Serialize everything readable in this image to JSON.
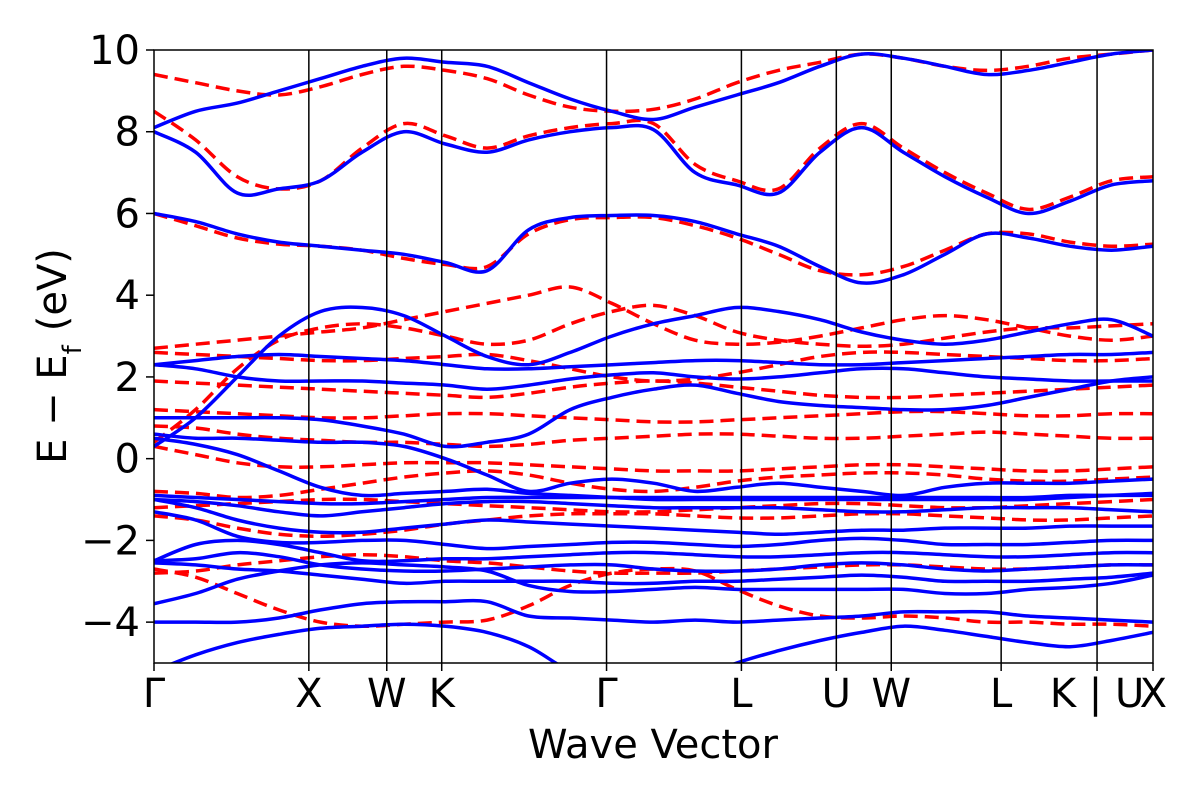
{
  "chart_data": {
    "type": "line",
    "title": "",
    "xlabel": "Wave Vector",
    "ylabel": {
      "main": "E − E",
      "sub": "f",
      "unit": "(eV)"
    },
    "ylim": [
      -5,
      10
    ],
    "y_ticks": [
      -4,
      -2,
      0,
      2,
      4,
      6,
      8,
      10
    ],
    "y_tick_labels": [
      "−4",
      "−2",
      "0",
      "2",
      "4",
      "6",
      "8",
      "10"
    ],
    "kpath": [
      {
        "label": "Γ",
        "x": 0.0
      },
      {
        "label": "X",
        "x": 0.155
      },
      {
        "label": "W",
        "x": 0.233
      },
      {
        "label": "K",
        "x": 0.288
      },
      {
        "label": "Γ",
        "x": 0.453
      },
      {
        "label": "L",
        "x": 0.588
      },
      {
        "label": "U",
        "x": 0.683
      },
      {
        "label": "W",
        "x": 0.738
      },
      {
        "label": "L",
        "x": 0.848
      },
      {
        "label": "K | U",
        "x": 0.944
      },
      {
        "label": "X",
        "x": 1.0
      }
    ],
    "xlim": [
      0.0,
      1.0
    ],
    "grid": false,
    "colors": {
      "series_a": "#0000ff",
      "series_b": "#ff0000",
      "kpoint_lines": "#000000"
    },
    "series": [
      {
        "style": "solid",
        "color": "#0000ff",
        "bands": [
          [
            -4.0,
            -4.0,
            -4.0,
            -3.9,
            -3.7,
            -3.55,
            -3.5,
            -3.5,
            -3.5,
            -3.85,
            -3.9,
            -3.95,
            -4.0,
            -3.95,
            -4.0,
            -3.95,
            -3.9,
            -3.85,
            -3.75,
            -3.75,
            -3.75,
            -3.85,
            -3.9,
            -3.95,
            -4.0
          ],
          [
            -3.55,
            -3.3,
            -2.95,
            -2.75,
            -2.6,
            -2.55,
            -2.6,
            -2.65,
            -2.75,
            -3.1,
            -3.25,
            -3.25,
            -3.2,
            -3.15,
            -3.2,
            -3.2,
            -3.2,
            -3.2,
            -3.2,
            -3.3,
            -3.3,
            -3.2,
            -3.15,
            -3.05,
            -2.85
          ],
          [
            -2.55,
            -2.6,
            -2.7,
            -2.75,
            -2.85,
            -2.95,
            -3.05,
            -3.0,
            -3.0,
            -3.0,
            -3.0,
            -3.05,
            -3.05,
            -3.0,
            -3.0,
            -2.95,
            -2.9,
            -2.85,
            -2.9,
            -3.0,
            -3.0,
            -3.0,
            -2.95,
            -2.9,
            -2.8
          ],
          [
            -2.5,
            -2.45,
            -2.3,
            -2.4,
            -2.6,
            -2.7,
            -2.75,
            -2.75,
            -2.7,
            -2.65,
            -2.6,
            -2.6,
            -2.7,
            -2.75,
            -2.75,
            -2.7,
            -2.6,
            -2.55,
            -2.6,
            -2.7,
            -2.75,
            -2.7,
            -2.65,
            -2.6,
            -2.6
          ],
          [
            -2.5,
            -2.1,
            -2.0,
            -2.1,
            -2.3,
            -2.5,
            -2.5,
            -2.45,
            -2.45,
            -2.4,
            -2.35,
            -2.3,
            -2.3,
            -2.35,
            -2.4,
            -2.4,
            -2.35,
            -2.3,
            -2.3,
            -2.35,
            -2.4,
            -2.4,
            -2.35,
            -2.3,
            -2.3
          ],
          [
            -1.3,
            -1.5,
            -1.9,
            -2.05,
            -2.05,
            -2.0,
            -2.0,
            -2.1,
            -2.2,
            -2.15,
            -2.1,
            -2.05,
            -2.05,
            -2.1,
            -2.15,
            -2.1,
            -2.0,
            -1.95,
            -2.0,
            -2.1,
            -2.1,
            -2.1,
            -2.05,
            -2.0,
            -2.0
          ],
          [
            -1.0,
            -1.2,
            -1.5,
            -1.7,
            -1.8,
            -1.8,
            -1.7,
            -1.6,
            -1.5,
            -1.55,
            -1.6,
            -1.65,
            -1.7,
            -1.75,
            -1.8,
            -1.85,
            -1.8,
            -1.75,
            -1.75,
            -1.7,
            -1.7,
            -1.7,
            -1.65,
            -1.65,
            -1.65
          ],
          [
            -1.0,
            -1.05,
            -1.15,
            -1.3,
            -1.4,
            -1.3,
            -1.2,
            -1.1,
            -1.05,
            -1.05,
            -1.1,
            -1.15,
            -1.2,
            -1.2,
            -1.2,
            -1.2,
            -1.25,
            -1.3,
            -1.3,
            -1.25,
            -1.2,
            -1.2,
            -1.2,
            -1.25,
            -1.3
          ],
          [
            -0.9,
            -0.95,
            -1.0,
            -1.05,
            -1.1,
            -1.1,
            -1.05,
            -1.0,
            -0.95,
            -0.95,
            -0.95,
            -0.95,
            -0.95,
            -0.95,
            -0.95,
            -0.95,
            -0.95,
            -0.95,
            -0.95,
            -0.95,
            -0.95,
            -0.95,
            -0.9,
            -0.9,
            -0.9
          ],
          [
            0.5,
            0.35,
            0.1,
            -0.3,
            -0.7,
            -0.9,
            -0.85,
            -0.8,
            -0.75,
            -0.85,
            -0.9,
            -0.95,
            -1.0,
            -1.0,
            -1.0,
            -1.0,
            -1.0,
            -1.0,
            -1.0,
            -1.0,
            -1.0,
            -1.0,
            -0.95,
            -0.9,
            -0.85
          ],
          [
            0.6,
            0.5,
            0.5,
            0.45,
            0.4,
            0.4,
            0.3,
            0.0,
            -0.4,
            -0.8,
            -0.6,
            -0.5,
            -0.6,
            -0.8,
            -0.7,
            -0.6,
            -0.7,
            -0.8,
            -0.9,
            -0.7,
            -0.6,
            -0.6,
            -0.6,
            -0.55,
            -0.5
          ],
          [
            1.0,
            1.0,
            1.0,
            1.0,
            0.95,
            0.8,
            0.6,
            0.3,
            0.4,
            0.6,
            1.2,
            1.5,
            1.7,
            1.8,
            1.6,
            1.4,
            1.3,
            1.25,
            1.2,
            1.2,
            1.3,
            1.5,
            1.7,
            1.9,
            2.0
          ],
          [
            2.3,
            2.2,
            2.0,
            1.9,
            1.9,
            1.9,
            1.85,
            1.8,
            1.7,
            1.8,
            1.95,
            2.05,
            2.1,
            2.0,
            1.95,
            2.0,
            2.1,
            2.2,
            2.2,
            2.1,
            2.0,
            1.95,
            1.9,
            1.9,
            1.9
          ],
          [
            2.3,
            2.4,
            2.5,
            2.55,
            2.5,
            2.45,
            2.4,
            2.3,
            2.2,
            2.2,
            2.25,
            2.3,
            2.35,
            2.4,
            2.4,
            2.35,
            2.3,
            2.3,
            2.35,
            2.4,
            2.45,
            2.5,
            2.55,
            2.55,
            2.6
          ],
          [
            0.3,
            1.0,
            2.0,
            3.0,
            3.6,
            3.7,
            3.5,
            3.0,
            2.5,
            2.3,
            2.6,
            3.0,
            3.3,
            3.5,
            3.7,
            3.6,
            3.4,
            3.1,
            2.9,
            2.8,
            2.9,
            3.1,
            3.3,
            3.4,
            3.0
          ],
          [
            6.0,
            5.8,
            5.5,
            5.3,
            5.2,
            5.1,
            5.0,
            4.8,
            4.6,
            5.6,
            5.9,
            5.95,
            5.95,
            5.8,
            5.5,
            5.2,
            4.7,
            4.3,
            4.5,
            5.0,
            5.5,
            5.4,
            5.2,
            5.1,
            5.2
          ],
          [
            8.0,
            7.5,
            6.5,
            6.6,
            6.8,
            7.5,
            8.0,
            7.7,
            7.5,
            7.8,
            8.0,
            8.1,
            8.05,
            7.0,
            6.7,
            6.5,
            7.5,
            8.1,
            7.5,
            6.9,
            6.4,
            6.0,
            6.3,
            6.7,
            6.8
          ],
          [
            8.1,
            8.5,
            8.7,
            9.0,
            9.3,
            9.6,
            9.8,
            9.7,
            9.6,
            9.2,
            8.8,
            8.5,
            8.3,
            8.6,
            8.9,
            9.2,
            9.6,
            9.9,
            9.8,
            9.6,
            9.4,
            9.5,
            9.7,
            9.9,
            10.0
          ],
          [
            -5.2,
            -4.8,
            -4.5,
            -4.3,
            -4.15,
            -4.1,
            -4.05,
            -4.1,
            -4.25,
            -4.6,
            -5.2,
            -5.5,
            -5.6,
            -5.4,
            -5.0,
            -4.7,
            -4.45,
            -4.25,
            -4.1,
            -4.2,
            -4.35,
            -4.5,
            -4.6,
            -4.45,
            -4.25
          ]
        ]
      },
      {
        "style": "dashed",
        "color": "#ff0000",
        "bands": [
          [
            -2.7,
            -2.9,
            -3.3,
            -3.7,
            -4.0,
            -4.1,
            -4.05,
            -4.0,
            -3.95,
            -3.6,
            -3.1,
            -2.8,
            -2.7,
            -2.75,
            -3.2,
            -3.6,
            -3.85,
            -3.9,
            -3.85,
            -3.9,
            -4.0,
            -4.0,
            -4.05,
            -4.05,
            -4.1
          ],
          [
            -2.8,
            -2.75,
            -2.6,
            -2.5,
            -2.4,
            -2.35,
            -2.4,
            -2.5,
            -2.55,
            -2.65,
            -2.75,
            -2.8,
            -2.8,
            -2.8,
            -2.75,
            -2.7,
            -2.65,
            -2.6,
            -2.6,
            -2.65,
            -2.7,
            -2.7,
            -2.65,
            -2.6,
            -2.6
          ],
          [
            -1.4,
            -1.5,
            -1.7,
            -1.85,
            -1.9,
            -1.85,
            -1.75,
            -1.6,
            -1.5,
            -1.4,
            -1.35,
            -1.35,
            -1.35,
            -1.4,
            -1.45,
            -1.45,
            -1.4,
            -1.35,
            -1.35,
            -1.4,
            -1.45,
            -1.5,
            -1.5,
            -1.45,
            -1.4
          ],
          [
            -1.2,
            -1.15,
            -1.1,
            -1.05,
            -1.0,
            -1.0,
            -1.05,
            -1.1,
            -1.15,
            -1.2,
            -1.25,
            -1.3,
            -1.3,
            -1.25,
            -1.2,
            -1.15,
            -1.1,
            -1.1,
            -1.15,
            -1.2,
            -1.2,
            -1.15,
            -1.1,
            -1.05,
            -1.0
          ],
          [
            -0.8,
            -0.85,
            -0.95,
            -0.9,
            -0.75,
            -0.6,
            -0.45,
            -0.35,
            -0.3,
            -0.4,
            -0.6,
            -0.75,
            -0.8,
            -0.7,
            -0.55,
            -0.45,
            -0.4,
            -0.35,
            -0.35,
            -0.4,
            -0.5,
            -0.55,
            -0.55,
            -0.5,
            -0.45
          ],
          [
            0.3,
            0.1,
            -0.1,
            -0.2,
            -0.2,
            -0.15,
            -0.1,
            -0.1,
            -0.1,
            -0.15,
            -0.2,
            -0.25,
            -0.3,
            -0.3,
            -0.3,
            -0.25,
            -0.2,
            -0.15,
            -0.15,
            -0.2,
            -0.25,
            -0.3,
            -0.3,
            -0.25,
            -0.2
          ],
          [
            0.8,
            0.75,
            0.6,
            0.5,
            0.45,
            0.4,
            0.4,
            0.35,
            0.3,
            0.35,
            0.45,
            0.5,
            0.55,
            0.6,
            0.6,
            0.55,
            0.5,
            0.5,
            0.55,
            0.6,
            0.65,
            0.6,
            0.55,
            0.5,
            0.5
          ],
          [
            1.2,
            1.15,
            1.1,
            1.05,
            1.0,
            1.0,
            1.05,
            1.1,
            1.1,
            1.05,
            1.0,
            0.95,
            0.9,
            0.9,
            0.95,
            1.0,
            1.05,
            1.1,
            1.15,
            1.15,
            1.1,
            1.05,
            1.05,
            1.1,
            1.1
          ],
          [
            1.9,
            1.85,
            1.8,
            1.75,
            1.7,
            1.65,
            1.6,
            1.55,
            1.5,
            1.6,
            1.75,
            1.85,
            1.9,
            1.85,
            1.75,
            1.65,
            1.55,
            1.5,
            1.5,
            1.55,
            1.6,
            1.65,
            1.7,
            1.75,
            1.8
          ],
          [
            2.7,
            2.8,
            2.9,
            3.0,
            3.1,
            3.2,
            3.4,
            3.6,
            3.8,
            4.0,
            4.2,
            3.8,
            3.3,
            2.9,
            2.8,
            2.85,
            3.0,
            3.2,
            3.4,
            3.5,
            3.4,
            3.2,
            3.0,
            2.9,
            3.0
          ],
          [
            2.6,
            2.55,
            2.5,
            2.45,
            2.4,
            2.4,
            2.45,
            2.5,
            2.55,
            2.4,
            2.2,
            2.0,
            1.9,
            1.95,
            2.1,
            2.3,
            2.5,
            2.6,
            2.6,
            2.55,
            2.5,
            2.45,
            2.4,
            2.4,
            2.45
          ],
          [
            6.0,
            5.7,
            5.4,
            5.25,
            5.2,
            5.1,
            4.9,
            4.75,
            4.7,
            5.5,
            5.85,
            5.9,
            5.9,
            5.7,
            5.4,
            5.0,
            4.6,
            4.5,
            4.7,
            5.1,
            5.5,
            5.5,
            5.3,
            5.2,
            5.25
          ],
          [
            8.5,
            7.8,
            6.9,
            6.6,
            6.8,
            7.6,
            8.2,
            7.9,
            7.6,
            7.9,
            8.1,
            8.2,
            8.2,
            7.2,
            6.8,
            6.6,
            7.6,
            8.2,
            7.6,
            7.0,
            6.5,
            6.1,
            6.4,
            6.8,
            6.9
          ],
          [
            9.4,
            9.2,
            9.0,
            8.9,
            9.1,
            9.4,
            9.6,
            9.5,
            9.3,
            8.9,
            8.6,
            8.5,
            8.55,
            8.8,
            9.2,
            9.5,
            9.7,
            9.9,
            9.8,
            9.6,
            9.5,
            9.6,
            9.8,
            9.9,
            10.0
          ],
          [
            0.4,
            1.2,
            2.2,
            2.9,
            3.2,
            3.3,
            3.2,
            3.0,
            2.8,
            2.9,
            3.3,
            3.6,
            3.75,
            3.5,
            3.1,
            2.9,
            2.8,
            2.75,
            2.8,
            2.95,
            3.1,
            3.2,
            3.2,
            3.25,
            3.3
          ]
        ]
      }
    ]
  }
}
